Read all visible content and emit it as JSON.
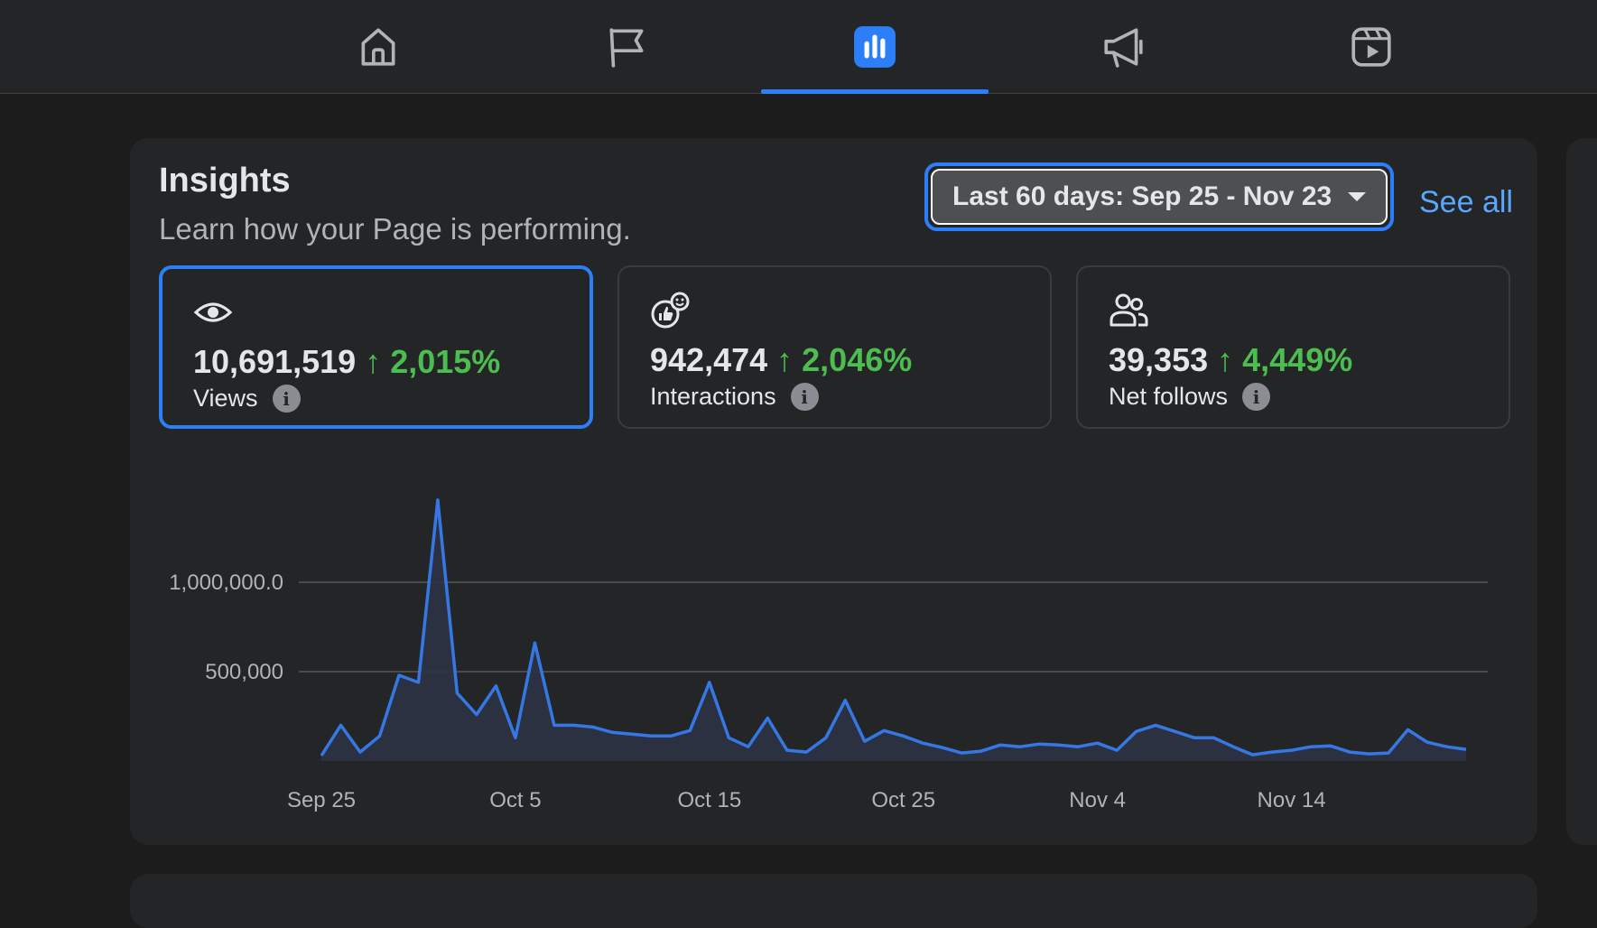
{
  "nav": {
    "tabs": [
      {
        "name": "home",
        "icon": "home-icon",
        "active": false
      },
      {
        "name": "pages",
        "icon": "flag-icon",
        "active": false
      },
      {
        "name": "insights",
        "icon": "bar-chart-icon",
        "active": true
      },
      {
        "name": "ads",
        "icon": "megaphone-icon",
        "active": false
      },
      {
        "name": "reels",
        "icon": "reels-icon",
        "active": false
      }
    ]
  },
  "insights": {
    "title": "Insights",
    "subtitle": "Learn how your Page is performing.",
    "date_range": "Last 60 days: Sep 25 - Nov 23",
    "see_all": "See all"
  },
  "metrics": [
    {
      "value": "10,691,519",
      "change": "↑ 2,015%",
      "label": "Views",
      "icon": "eye-icon",
      "selected": true
    },
    {
      "value": "942,474",
      "change": "↑ 2,046%",
      "label": "Interactions",
      "icon": "interactions-icon",
      "selected": false
    },
    {
      "value": "39,353",
      "change": "↑ 4,449%",
      "label": "Net follows",
      "icon": "people-icon",
      "selected": false
    }
  ],
  "colors": {
    "accent": "#2d7ff9",
    "positive": "#4cbd4f",
    "line": "#3578e5"
  },
  "chart_data": {
    "type": "area",
    "title": "Views",
    "xlabel": "",
    "ylabel": "",
    "ylim": [
      0,
      1450000
    ],
    "y_ticks": [
      500000,
      1000000
    ],
    "y_tick_labels": [
      "500,000",
      "1,000,000.0"
    ],
    "x_tick_labels": [
      "Sep 25",
      "Oct 5",
      "Oct 15",
      "Oct 25",
      "Nov 4",
      "Nov 14"
    ],
    "x_tick_index": [
      0,
      10,
      20,
      30,
      40,
      50
    ],
    "x": [
      "Sep 25",
      "Sep 26",
      "Sep 27",
      "Sep 28",
      "Sep 29",
      "Sep 30",
      "Oct 1",
      "Oct 2",
      "Oct 3",
      "Oct 4",
      "Oct 5",
      "Oct 6",
      "Oct 7",
      "Oct 8",
      "Oct 9",
      "Oct 10",
      "Oct 11",
      "Oct 12",
      "Oct 13",
      "Oct 14",
      "Oct 15",
      "Oct 16",
      "Oct 17",
      "Oct 18",
      "Oct 19",
      "Oct 20",
      "Oct 21",
      "Oct 22",
      "Oct 23",
      "Oct 24",
      "Oct 25",
      "Oct 26",
      "Oct 27",
      "Oct 28",
      "Oct 29",
      "Oct 30",
      "Oct 31",
      "Nov 1",
      "Nov 2",
      "Nov 3",
      "Nov 4",
      "Nov 5",
      "Nov 6",
      "Nov 7",
      "Nov 8",
      "Nov 9",
      "Nov 10",
      "Nov 11",
      "Nov 12",
      "Nov 13",
      "Nov 14",
      "Nov 15",
      "Nov 16",
      "Nov 17",
      "Nov 18",
      "Nov 19",
      "Nov 20",
      "Nov 21",
      "Nov 22",
      "Nov 23"
    ],
    "values": [
      30000,
      200000,
      50000,
      140000,
      480000,
      440000,
      1460000,
      380000,
      260000,
      420000,
      130000,
      660000,
      200000,
      200000,
      190000,
      160000,
      150000,
      140000,
      140000,
      170000,
      440000,
      130000,
      80000,
      240000,
      60000,
      50000,
      130000,
      340000,
      110000,
      170000,
      140000,
      100000,
      75000,
      45000,
      55000,
      90000,
      80000,
      95000,
      90000,
      80000,
      100000,
      60000,
      165000,
      200000,
      165000,
      130000,
      130000,
      80000,
      35000,
      50000,
      60000,
      80000,
      85000,
      50000,
      40000,
      45000,
      175000,
      105000,
      80000,
      65000
    ],
    "series": [
      {
        "name": "Views"
      }
    ]
  }
}
